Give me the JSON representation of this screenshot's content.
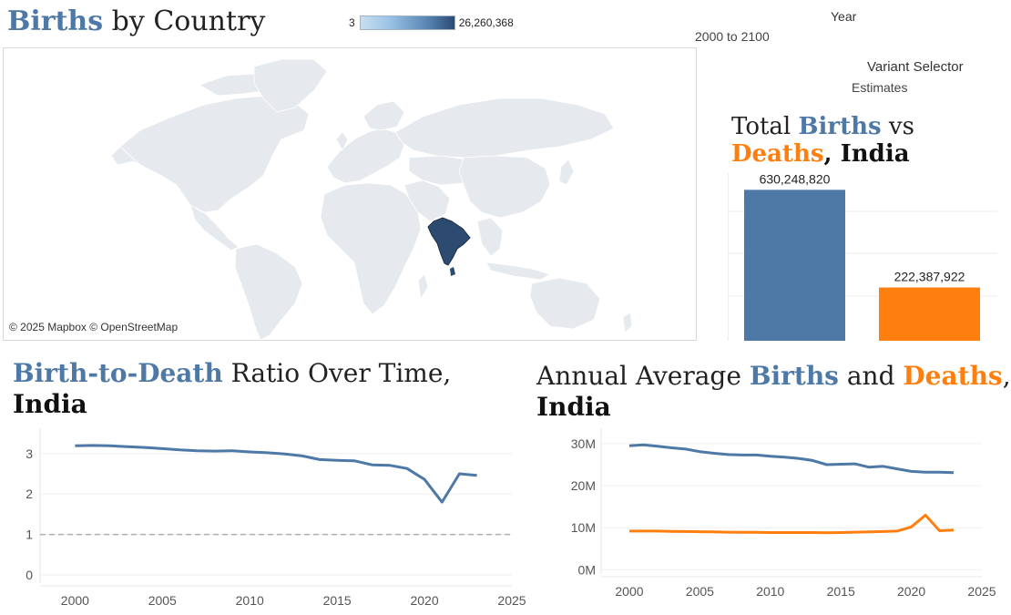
{
  "map_section": {
    "title_highlight": "Births",
    "title_rest": " by Country",
    "legend_min": "3",
    "legend_max": "26,260,368",
    "credit": "© 2025 Mapbox © OpenStreetMap",
    "colors": {
      "land": "#e6e9ed",
      "highlight": "#2d4b71",
      "legend_low": "#c9def0",
      "legend_high": "#2c4b73"
    }
  },
  "filters": {
    "year_label": "Year",
    "year_value": "2000 to 2100",
    "variant_label": "Variant Selector",
    "variant_value": "Estimates"
  },
  "total_section": {
    "title_part1": "Total ",
    "title_births": "Births",
    "title_vs": " vs",
    "title_deaths": "Deaths",
    "title_comma": ", ",
    "title_country": "India",
    "births_label": "630,248,820",
    "deaths_label": "222,387,922",
    "colors": {
      "births": "#4e79a7",
      "deaths": "#ff7f0e"
    }
  },
  "ratio_section": {
    "title_highlight": "Birth-to-Death",
    "title_rest": " Ratio Over Time,",
    "title_country": "India"
  },
  "annual_section": {
    "title_part1": "Annual Average ",
    "title_births": "Births",
    "title_and": " and ",
    "title_deaths": "Deaths",
    "title_comma": ",",
    "title_country": "India"
  },
  "chart_data": [
    {
      "type": "bar",
      "categories": [
        "Births",
        "Deaths"
      ],
      "values": [
        630248820,
        222387922
      ],
      "data_labels": [
        "630,248,820",
        "222,387,922"
      ],
      "colors": [
        "#4e79a7",
        "#ff7f0e"
      ],
      "ylim": [
        0,
        700000000
      ],
      "grid": true
    },
    {
      "type": "line",
      "x": [
        2000,
        2001,
        2002,
        2003,
        2004,
        2005,
        2006,
        2007,
        2008,
        2009,
        2010,
        2011,
        2012,
        2013,
        2014,
        2015,
        2016,
        2017,
        2018,
        2019,
        2020,
        2021,
        2022,
        2023
      ],
      "series": [
        {
          "values": [
            3.19,
            3.2,
            3.19,
            3.17,
            3.15,
            3.12,
            3.09,
            3.07,
            3.06,
            3.07,
            3.04,
            3.02,
            2.99,
            2.94,
            2.85,
            2.83,
            2.82,
            2.72,
            2.71,
            2.63,
            2.36,
            1.8,
            2.5,
            2.46
          ],
          "color": "#4e79a7"
        }
      ],
      "reference_line": 1,
      "xticks": [
        2000,
        2005,
        2010,
        2015,
        2020,
        2025
      ],
      "yticks": [
        0,
        1,
        2,
        3
      ],
      "xlim": [
        1998,
        2025
      ],
      "ylim": [
        -0.2,
        3.4
      ],
      "grid": true
    },
    {
      "type": "line",
      "x": [
        2000,
        2001,
        2002,
        2003,
        2004,
        2005,
        2006,
        2007,
        2008,
        2009,
        2010,
        2011,
        2012,
        2013,
        2014,
        2015,
        2016,
        2017,
        2018,
        2019,
        2020,
        2021,
        2022,
        2023
      ],
      "series": [
        {
          "name": "Births",
          "values": [
            29.5,
            29.7,
            29.4,
            29.0,
            28.7,
            28.1,
            27.7,
            27.4,
            27.3,
            27.3,
            27.0,
            26.8,
            26.5,
            26.0,
            25.0,
            25.1,
            25.2,
            24.4,
            24.6,
            24.0,
            23.4,
            23.2,
            23.2,
            23.1
          ],
          "color": "#4e79a7"
        },
        {
          "name": "Deaths",
          "values": [
            9.2,
            9.2,
            9.2,
            9.15,
            9.1,
            9.05,
            9.0,
            8.95,
            8.9,
            8.9,
            8.85,
            8.85,
            8.85,
            8.85,
            8.8,
            8.85,
            8.95,
            9.0,
            9.1,
            9.2,
            10.2,
            13.0,
            9.3,
            9.45
          ],
          "color": "#ff7f0e"
        }
      ],
      "ytick_labels": [
        "0M",
        "10M",
        "20M",
        "30M"
      ],
      "yticks": [
        0,
        10,
        20,
        30
      ],
      "xticks": [
        2000,
        2005,
        2010,
        2015,
        2020,
        2025
      ],
      "xlim": [
        1998,
        2025
      ],
      "ylim": [
        -1,
        31.5
      ],
      "grid": true
    }
  ]
}
